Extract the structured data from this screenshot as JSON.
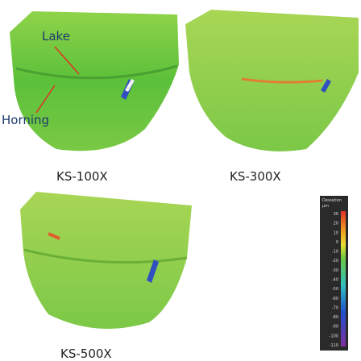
{
  "figure": {
    "annotations": {
      "lake": "Lake",
      "horning": "Horning"
    },
    "panels": [
      {
        "label": "KS-100X"
      },
      {
        "label": "KS-300X"
      },
      {
        "label": "KS-500X"
      }
    ],
    "colorbar": {
      "title": "Deviation",
      "unit": "µm",
      "labels": [
        "30",
        "20",
        "10",
        "0",
        "-10",
        "-20",
        "-30",
        "-40",
        "-50",
        "-60",
        "-70",
        "-80",
        "-90",
        "-100",
        "-110"
      ]
    }
  }
}
